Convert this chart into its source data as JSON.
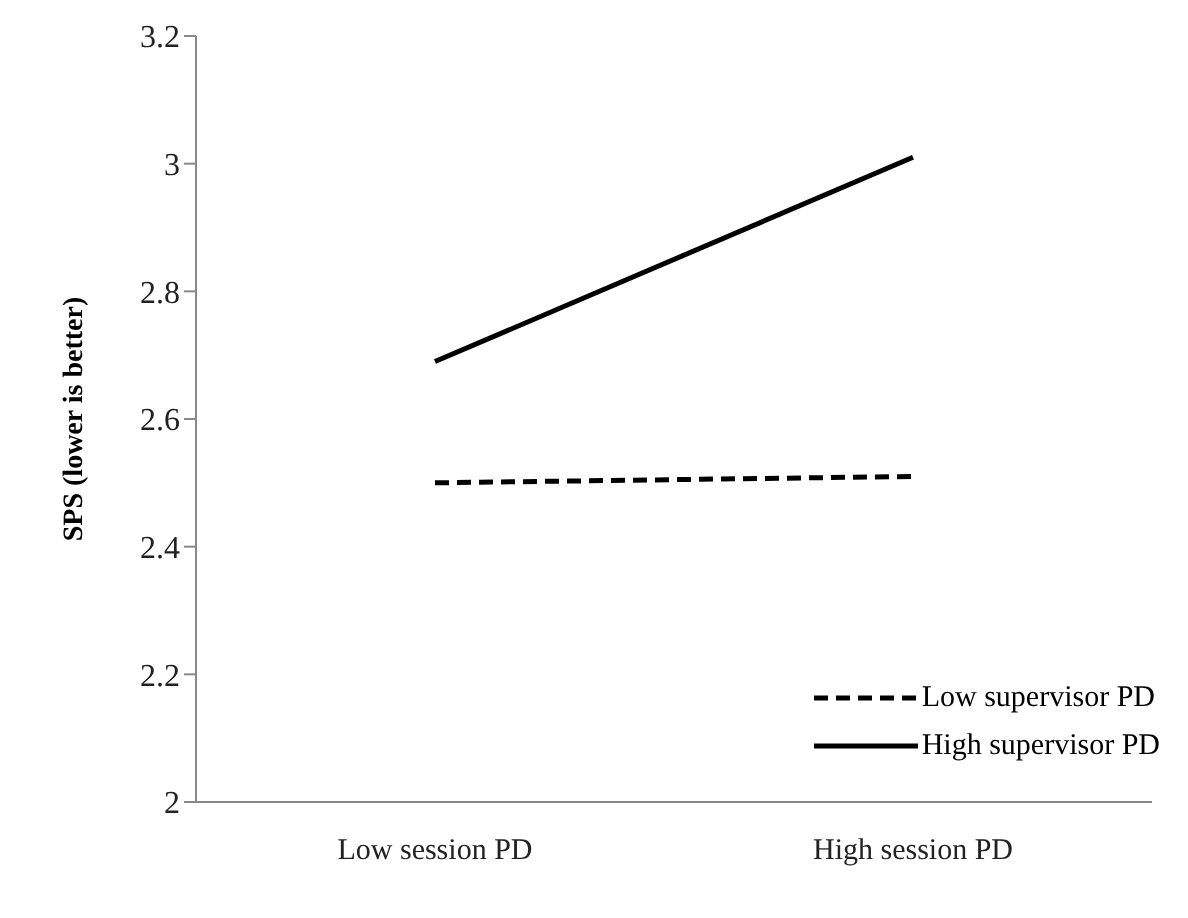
{
  "chart_data": {
    "type": "line",
    "ylabel": "SPS (lower is better)",
    "categories": [
      "Low session PD",
      "High session PD"
    ],
    "series": [
      {
        "name": "Low supervisor PD",
        "color": "#000000",
        "values": [
          2.5,
          2.51
        ],
        "line_style": "dashed"
      },
      {
        "name": "High supervisor PD",
        "color": "#000000",
        "values": [
          2.69,
          3.01
        ],
        "line_style": "solid"
      }
    ],
    "ylim": [
      2,
      3.2
    ],
    "yticks": [
      2,
      2.2,
      2.4,
      2.6,
      2.8,
      3,
      3.2
    ],
    "grid": false,
    "legend": "bottom right",
    "marker": "none"
  }
}
